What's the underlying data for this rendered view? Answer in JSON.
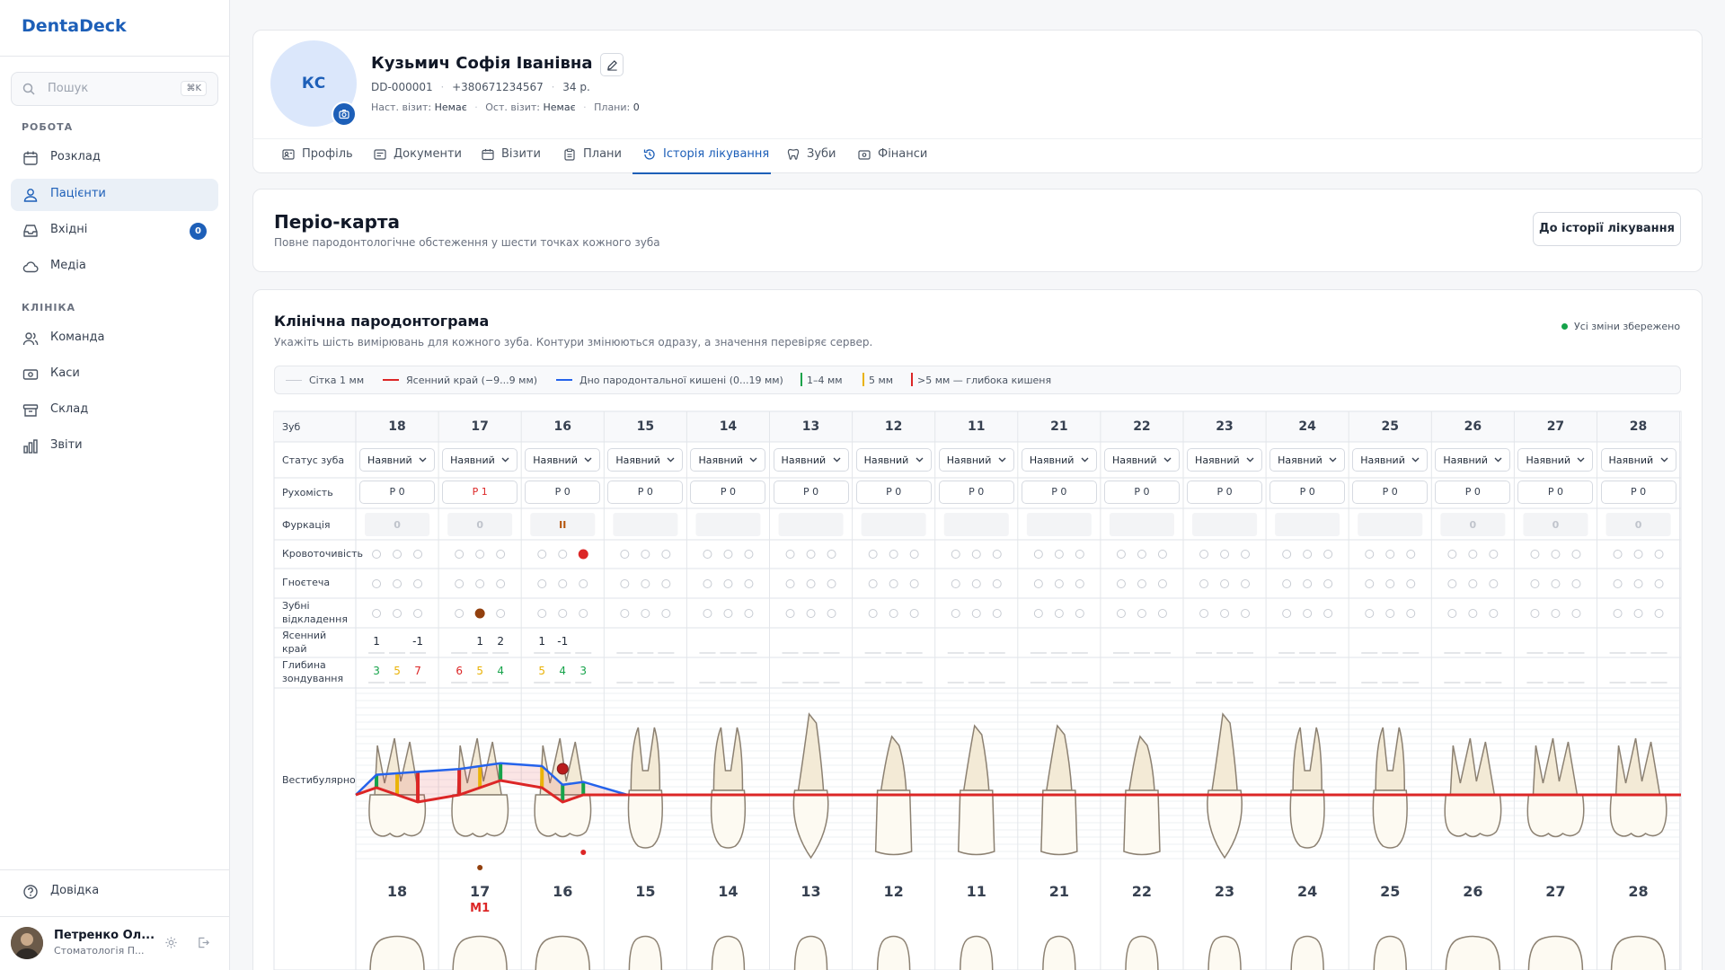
{
  "app": {
    "name": "DentaDeck"
  },
  "search": {
    "placeholder": "Пошук",
    "shortcut": "⌘K"
  },
  "sidebar": {
    "section_work": "РОБОТА",
    "section_clinic": "КЛІНІКА",
    "items": [
      {
        "label": "Розклад",
        "icon": "calendar-icon"
      },
      {
        "label": "Пацієнти",
        "icon": "users-icon",
        "active": true
      },
      {
        "label": "Вхідні",
        "icon": "inbox-icon",
        "badge": "0"
      },
      {
        "label": "Медіа",
        "icon": "cloud-icon"
      },
      {
        "label": "Команда",
        "icon": "team-icon"
      },
      {
        "label": "Каси",
        "icon": "cash-icon"
      },
      {
        "label": "Склад",
        "icon": "archive-icon"
      },
      {
        "label": "Звіти",
        "icon": "chart-icon"
      }
    ],
    "help": "Довідка",
    "user": {
      "name": "Петренко Ол...",
      "role": "Стоматологія П..."
    }
  },
  "patient": {
    "initials": "КС",
    "name": "Кузьмич Софія Іванівна",
    "id": "DD-000001",
    "phone": "+380671234567",
    "age": "34 р.",
    "next_visit_label": "Наст. візит:",
    "next_visit": "Немає",
    "last_visit_label": "Ост. візит:",
    "last_visit": "Немає",
    "plans_label": "Плани:",
    "plans": "0"
  },
  "tabs": [
    {
      "label": "Профіль",
      "icon": "profile-icon"
    },
    {
      "label": "Документи",
      "icon": "document-icon"
    },
    {
      "label": "Візити",
      "icon": "calendar-icon"
    },
    {
      "label": "Плани",
      "icon": "clipboard-icon"
    },
    {
      "label": "Історія лікування",
      "icon": "history-icon",
      "active": true
    },
    {
      "label": "Зуби",
      "icon": "tooth-icon"
    },
    {
      "label": "Фінанси",
      "icon": "wallet-icon"
    }
  ],
  "header": {
    "title": "Періо-карта",
    "subtitle": "Повне пародонтологічне обстеження у шести точках кожного зуба",
    "back_button": "До історії лікування"
  },
  "chart": {
    "title": "Клінічна пародонтограма",
    "subtitle": "Укажіть шість вимірювань для кожного зуба. Контури змінюються одразу, а значення перевіряє сервер.",
    "saved": "Усі зміни збережено",
    "legend": {
      "grid": "Сітка 1 мм",
      "gum": "Ясенний край (−9...9 мм)",
      "pocket": "Дно пародонтальної кишені (0...19 мм)",
      "mild": "1–4 мм",
      "mid": "5 мм",
      "deep": ">5 мм — глибока кишеня"
    },
    "row_labels": {
      "tooth": "Зуб",
      "status": "Статус зуба",
      "mobility": "Рухомість",
      "furcation": "Фуркація",
      "bleeding": "Кровоточивість",
      "suppuration": "Гноєтеча",
      "plaque_l1": "Зубні",
      "plaque_l2": "відкладення",
      "gum_l1": "Ясенний",
      "gum_l2": "край",
      "depth_l1": "Глибина",
      "depth_l2": "зондування",
      "vestibular": "Вестибулярно"
    },
    "status_value": "Наявний",
    "mobility_prefix": "Р",
    "teeth": [
      "18",
      "17",
      "16",
      "15",
      "14",
      "13",
      "12",
      "11",
      "21",
      "22",
      "23",
      "24",
      "25",
      "26",
      "27",
      "28"
    ],
    "mobility": [
      0,
      1,
      0,
      0,
      0,
      0,
      0,
      0,
      0,
      0,
      0,
      0,
      0,
      0,
      0,
      0
    ],
    "furcation": [
      "0",
      "0",
      "II",
      "",
      "",
      "",
      "",
      "",
      "",
      "",
      "",
      "",
      "",
      "0",
      "0",
      "0"
    ],
    "bleeding": {
      "16": [
        false,
        false,
        true
      ]
    },
    "plaque": {
      "17": [
        false,
        true,
        false
      ]
    },
    "gum_margin": {
      "18": [
        "1",
        "",
        "-1"
      ],
      "17": [
        "",
        "1",
        "2"
      ],
      "16": [
        "1",
        "-1",
        ""
      ]
    },
    "probing_depth": {
      "18": [
        3,
        5,
        7
      ],
      "17": [
        6,
        5,
        4
      ],
      "16": [
        5,
        4,
        3
      ]
    },
    "tooth_notes": {
      "17": "M1"
    },
    "colors": {
      "gum": "#dc2626",
      "pocket": "#2563eb",
      "mild": "#16a34a",
      "mid": "#eab308",
      "deep": "#dc2626",
      "accent": "#1d5fb8"
    }
  }
}
